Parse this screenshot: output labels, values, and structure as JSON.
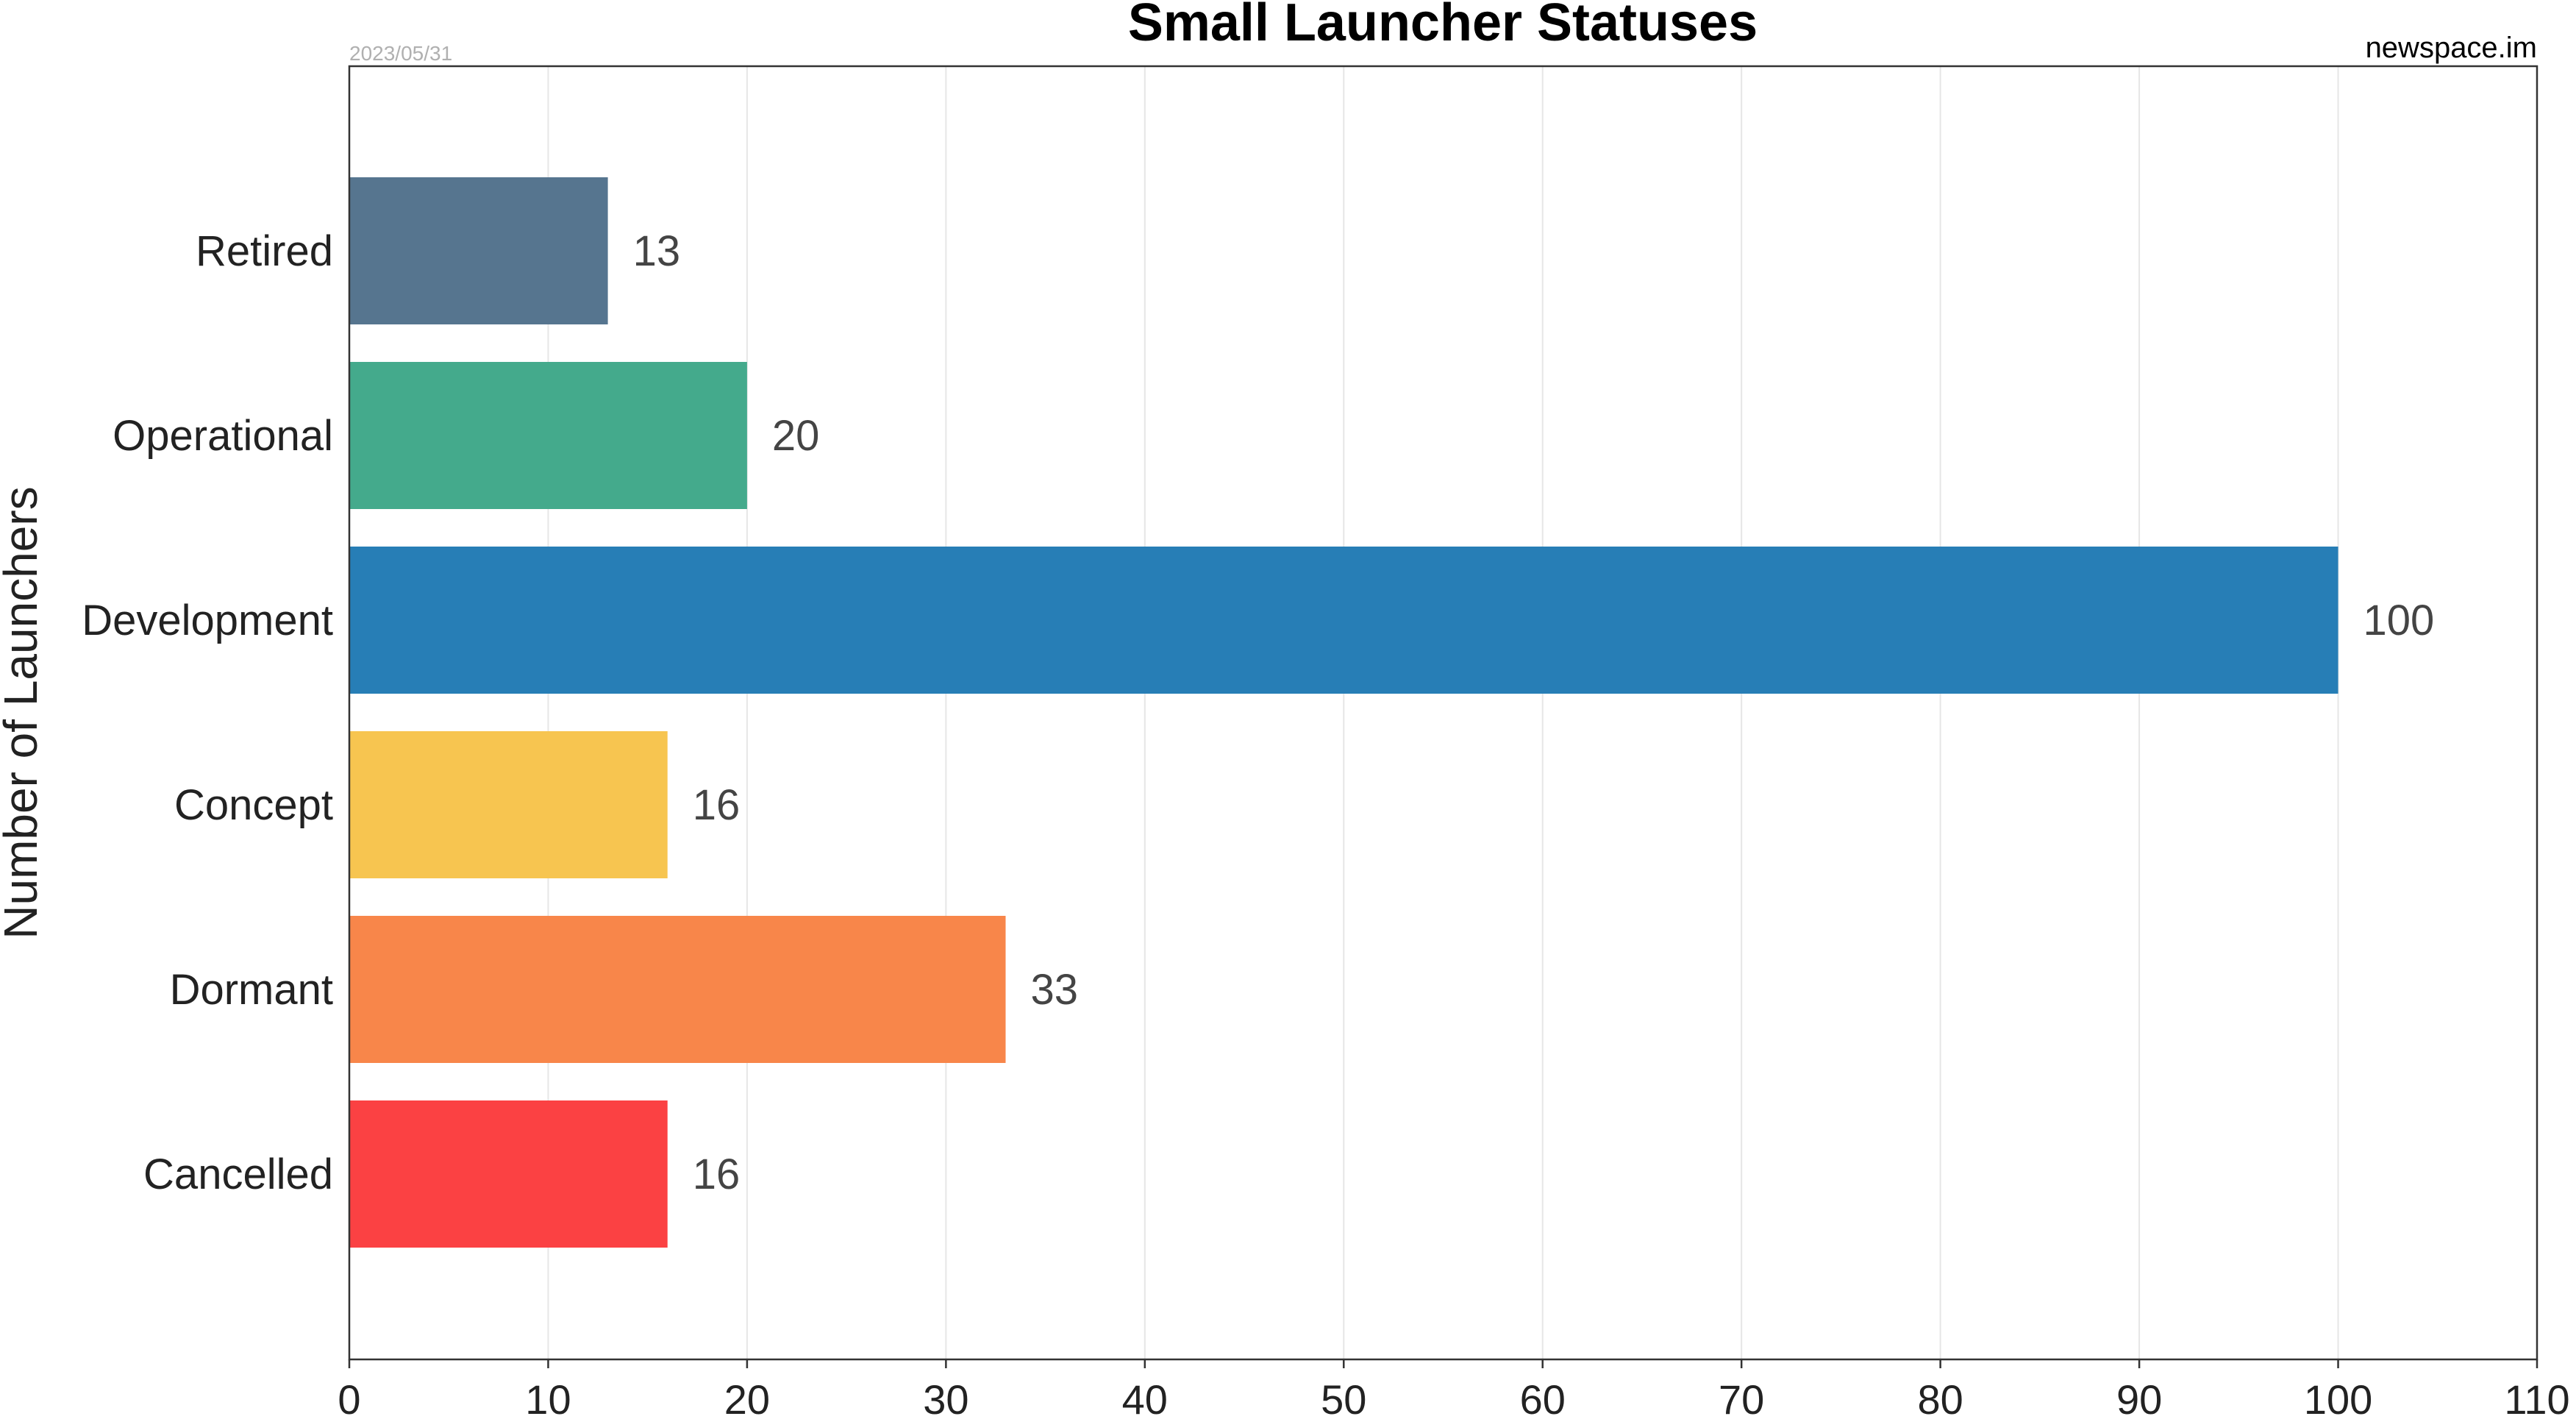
{
  "chart_data": {
    "type": "bar",
    "orientation": "horizontal",
    "title": "Small Launcher Statuses",
    "date": "2023/05/31",
    "source": "newspace.im",
    "xlabel": "",
    "ylabel": "Number of Launchers",
    "xlim": [
      0,
      110
    ],
    "xticks": [
      0,
      10,
      20,
      30,
      40,
      50,
      60,
      70,
      80,
      90,
      100,
      110
    ],
    "grid": true,
    "categories": [
      "Retired",
      "Operational",
      "Development",
      "Concept",
      "Dormant",
      "Cancelled"
    ],
    "values": [
      13,
      20,
      100,
      16,
      33,
      16
    ],
    "colors": [
      "#56758f",
      "#44aa8c",
      "#277eb6",
      "#f7c550",
      "#f8864a",
      "#fb4143"
    ],
    "data_labels": [
      "13",
      "20",
      "100",
      "16",
      "33",
      "16"
    ]
  }
}
